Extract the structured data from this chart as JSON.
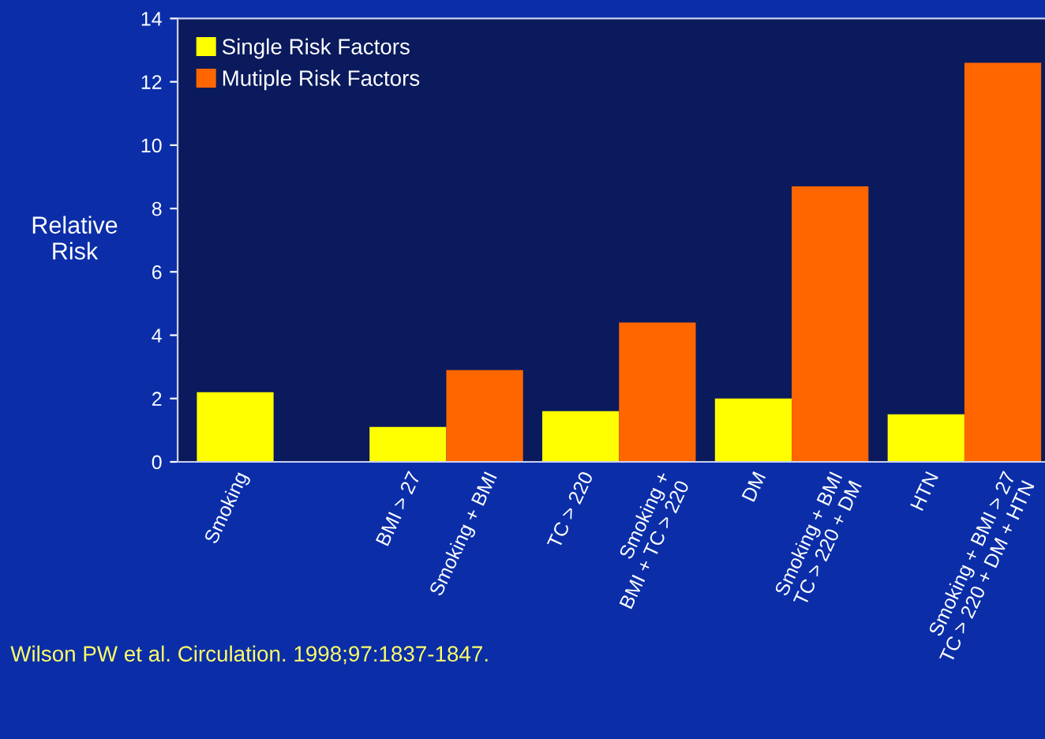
{
  "chart_data": {
    "type": "bar",
    "categories": [
      "Smoking",
      null,
      "BMI > 27",
      "Smoking + BMI",
      "TC > 220",
      "Smoking +\nBMI + TC > 220",
      "DM",
      "Smoking + BMI\nTC > 220 + DM",
      "HTN",
      "Smoking + BMI > 27\nTC > 220 + DM + HTN"
    ],
    "series": [
      {
        "name": "Single Risk Factors",
        "color": "#ffff00",
        "values": [
          2.2,
          null,
          1.1,
          null,
          1.6,
          null,
          2.0,
          null,
          1.5,
          null
        ]
      },
      {
        "name": "Mutiple Risk Factors",
        "color": "#ff6600",
        "values": [
          null,
          null,
          null,
          2.9,
          null,
          4.4,
          null,
          8.7,
          null,
          12.6
        ]
      }
    ],
    "ylabel": "Relative\nRisk",
    "ylim": [
      0,
      14
    ],
    "yticks": [
      0,
      2,
      4,
      6,
      8,
      10,
      12,
      14
    ],
    "annotations": [
      "Wilson PW et al. Circulation. 1998;97:1837-1847."
    ],
    "legend": "top left",
    "grid": false
  }
}
